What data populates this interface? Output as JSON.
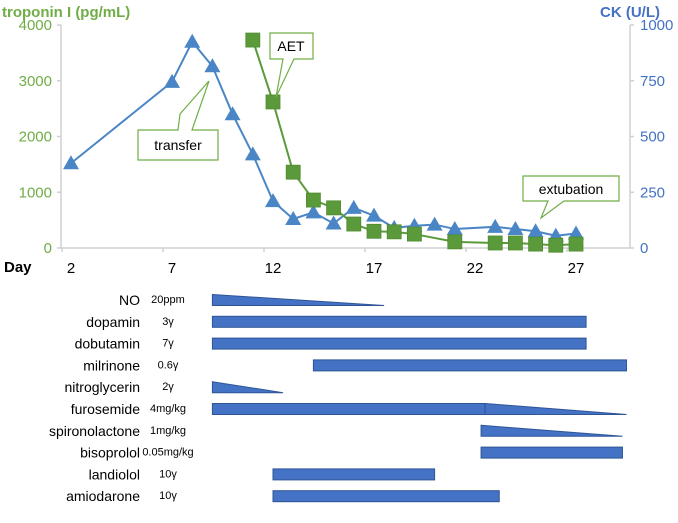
{
  "chart_data": {
    "type": "line",
    "xlabel": "Day",
    "x_ticks": [
      "2",
      "7",
      "12",
      "17",
      "22",
      "27"
    ],
    "x_range": [
      1,
      30
    ],
    "left_axis": {
      "label": "troponin I (pg/mL)",
      "ticks": [
        "0",
        "1000",
        "2000",
        "3000",
        "4000"
      ],
      "range": [
        0,
        4000
      ]
    },
    "right_axis": {
      "label": "CK (U/L)",
      "ticks": [
        "0",
        "250",
        "500",
        "750",
        "1000"
      ],
      "range": [
        0,
        1000
      ]
    },
    "grid": false,
    "series": [
      {
        "name": "CK",
        "axis": "right",
        "marker": "triangle",
        "color": "#4a86c6",
        "x": [
          2,
          7,
          8,
          9,
          10,
          11,
          12,
          13,
          14,
          15,
          16,
          17,
          18,
          19,
          20,
          21,
          23,
          24,
          25,
          26,
          27
        ],
        "y": [
          380,
          745,
          925,
          815,
          600,
          420,
          210,
          130,
          160,
          110,
          180,
          145,
          90,
          100,
          105,
          85,
          95,
          85,
          75,
          55,
          65
        ]
      },
      {
        "name": "troponin I",
        "axis": "left",
        "marker": "square",
        "color": "#5b9a3a",
        "x": [
          11,
          12,
          13,
          14,
          15,
          16,
          17,
          18,
          19,
          21,
          23,
          24,
          25,
          26,
          27
        ],
        "y": [
          3730,
          2620,
          1360,
          860,
          720,
          430,
          300,
          290,
          250,
          110,
          90,
          90,
          70,
          50,
          70
        ]
      }
    ],
    "annotations": [
      {
        "text": "transfer",
        "day": 9
      },
      {
        "text": "AET",
        "day": 12
      },
      {
        "text": "extubation",
        "day": 25
      }
    ],
    "medications": [
      {
        "name": "NO",
        "dose": "20ppm",
        "start": 9,
        "end": 17.5,
        "shape": "taper"
      },
      {
        "name": "dopamin",
        "dose": "3γ",
        "start": 9,
        "end": 27.5,
        "shape": "bar"
      },
      {
        "name": "dobutamin",
        "dose": "7γ",
        "start": 9,
        "end": 27.5,
        "shape": "bar"
      },
      {
        "name": "milrinone",
        "dose": "0.6γ",
        "start": 14,
        "end": 29.5,
        "shape": "bar"
      },
      {
        "name": "nitroglycerin",
        "dose": "2γ",
        "start": 9,
        "end": 12.5,
        "shape": "taper"
      },
      {
        "name": "furosemide",
        "dose": "4mg/kg",
        "start": 9,
        "end": 22.5,
        "shape": "bar",
        "taper_end": 29.5
      },
      {
        "name": "spironolactone",
        "dose": "1mg/kg",
        "start": 22.3,
        "end": 29.3,
        "shape": "taper"
      },
      {
        "name": "bisoprolol",
        "dose": "0.05mg/kg",
        "start": 22.3,
        "end": 29.3,
        "shape": "bar"
      },
      {
        "name": "landiolol",
        "dose": "10γ",
        "start": 12,
        "end": 20,
        "shape": "bar"
      },
      {
        "name": "amiodarone",
        "dose": "10γ",
        "start": 12,
        "end": 23.2,
        "shape": "bar"
      }
    ]
  }
}
